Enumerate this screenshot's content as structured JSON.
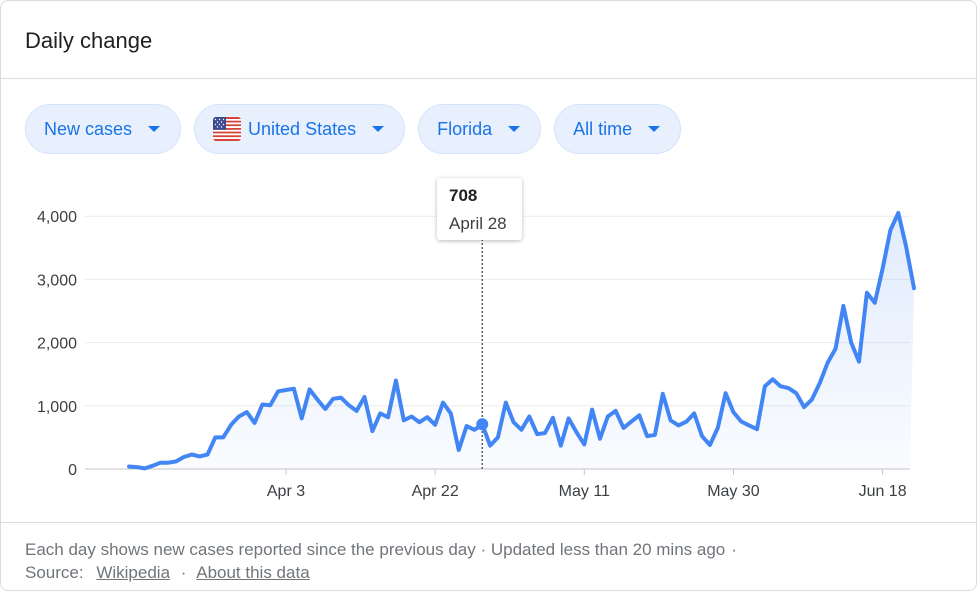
{
  "card": {
    "title": "Daily change"
  },
  "filters": {
    "metric": "New cases",
    "country": "United States",
    "region": "Florida",
    "period": "All time"
  },
  "tooltip": {
    "value": "708",
    "date": "April 28"
  },
  "footer": {
    "note": "Each day shows new cases reported since the previous day · Updated less than 20 mins ago",
    "note_sep": "·",
    "source_label": "Source:",
    "source_link": "Wikipedia",
    "about_link": "About this data",
    "dot": "·"
  },
  "colors": {
    "line": "#4285f4",
    "accent": "#1a73e8",
    "chip_bg": "#e8f0fe"
  },
  "chart_data": {
    "type": "area",
    "title": "",
    "xlabel": "",
    "ylabel": "",
    "ylim": [
      0,
      4000
    ],
    "yticks": [
      "0",
      "1,000",
      "2,000",
      "3,000",
      "4,000"
    ],
    "xticks": [
      "Apr 3",
      "Apr 22",
      "May 11",
      "May 30",
      "Jun 18"
    ],
    "grid": true,
    "highlight": {
      "date": "April 28",
      "value": 708
    },
    "series": [
      {
        "x_start": "2020-03-14",
        "values": [
          40,
          30,
          10,
          50,
          100,
          100,
          120,
          190,
          230,
          200,
          230,
          500,
          500,
          700,
          830,
          900,
          730,
          1020,
          1010,
          1230,
          1250,
          1270,
          800,
          1260,
          1100,
          950,
          1110,
          1130,
          1010,
          920,
          1140,
          600,
          880,
          820,
          1400,
          770,
          830,
          740,
          820,
          700,
          1050,
          880,
          300,
          680,
          620,
          708,
          370,
          500,
          1050,
          740,
          620,
          830,
          550,
          570,
          810,
          370,
          800,
          580,
          390,
          940,
          480,
          830,
          920,
          650,
          750,
          850,
          520,
          540,
          1190,
          770,
          690,
          750,
          880,
          520,
          380,
          650,
          1200,
          900,
          750,
          690,
          630,
          1310,
          1420,
          1310,
          1280,
          1200,
          980,
          1100,
          1360,
          1680,
          1900,
          2580,
          2000,
          1700,
          2790,
          2630,
          3170,
          3780,
          4050,
          3520,
          2860
        ]
      }
    ]
  }
}
